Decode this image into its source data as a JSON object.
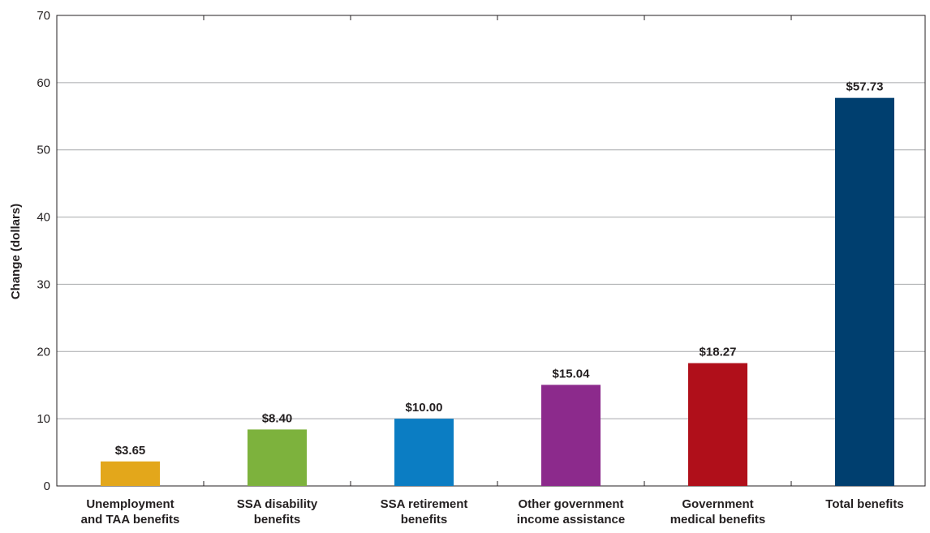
{
  "chart_data": {
    "type": "bar",
    "y_label": "Change (dollars)",
    "categories": [
      [
        "Unemployment",
        "and TAA benefits"
      ],
      [
        "SSA disability",
        "benefits"
      ],
      [
        "SSA retirement",
        "benefits"
      ],
      [
        "Other government",
        "income assistance"
      ],
      [
        "Government",
        "medical benefits"
      ],
      [
        "Total benefits"
      ]
    ],
    "values": [
      3.65,
      8.4,
      10.0,
      15.04,
      18.27,
      57.73
    ],
    "value_labels": [
      "$3.65",
      "$8.40",
      "$10.00",
      "$15.04",
      "$18.27",
      "$57.73"
    ],
    "colors": [
      "#e3a71b",
      "#7db23d",
      "#0b7dc3",
      "#8c2a8c",
      "#b00f1a",
      "#003f6f"
    ],
    "ylim": [
      0,
      70
    ],
    "yticks": [
      0,
      10,
      20,
      30,
      40,
      50,
      60,
      70
    ],
    "grid": true
  }
}
